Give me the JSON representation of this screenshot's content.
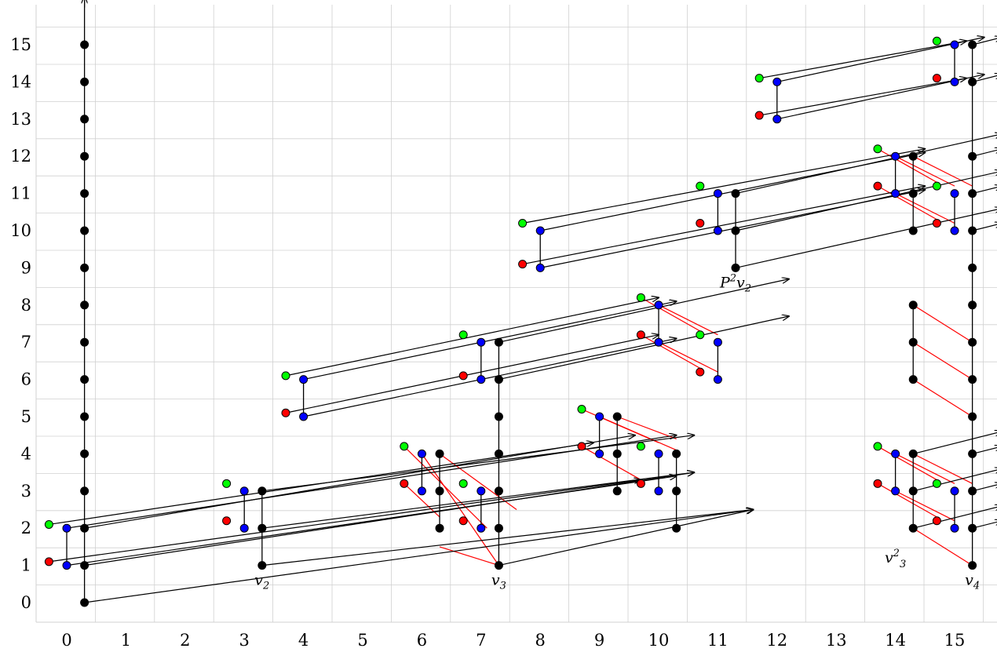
{
  "colors": {
    "background": "#ffffff",
    "grid": "#d0d0d0",
    "black": "#000000",
    "red": "#ff0000",
    "green": "#00ff00",
    "blue": "#0000ff",
    "red_line": "#ff0000"
  },
  "axes": {
    "x_ticks": [
      "0",
      "1",
      "2",
      "3",
      "4",
      "5",
      "6",
      "7",
      "8",
      "9",
      "10",
      "11",
      "12",
      "13",
      "14",
      "15"
    ],
    "y_ticks": [
      "0",
      "1",
      "2",
      "3",
      "4",
      "5",
      "6",
      "7",
      "8",
      "9",
      "10",
      "11",
      "12",
      "13",
      "14",
      "15"
    ],
    "x_range": [
      -0.5,
      15.7
    ],
    "y_range": [
      -0.8,
      16.2
    ],
    "grid": true
  },
  "labels": [
    {
      "text": "v2",
      "base": "v",
      "sub": "2",
      "sup": "",
      "x": 3.3,
      "y": 0.6
    },
    {
      "text": "v3",
      "base": "v",
      "sub": "3",
      "sup": "",
      "x": 7.3,
      "y": 0.6
    },
    {
      "text": "P2v2",
      "base": "P",
      "sup": "2",
      "post": "v",
      "sub": "2",
      "x": 11.3,
      "y": 8.6
    },
    {
      "text": "v3^2",
      "base": "v",
      "sub": "3",
      "sup": "2",
      "x": 14.0,
      "y": 1.2
    },
    {
      "text": "v4",
      "base": "v",
      "sub": "4",
      "sup": "",
      "x": 15.3,
      "y": 0.6
    }
  ],
  "diagram": {
    "black_dots": [
      [
        0.3,
        0
      ],
      [
        0.3,
        1
      ],
      [
        0.3,
        2
      ],
      [
        0.3,
        3
      ],
      [
        0.3,
        4
      ],
      [
        0.3,
        5
      ],
      [
        0.3,
        6
      ],
      [
        0.3,
        7
      ],
      [
        0.3,
        8
      ],
      [
        0.3,
        9
      ],
      [
        0.3,
        10
      ],
      [
        0.3,
        11
      ],
      [
        0.3,
        12
      ],
      [
        0.3,
        13
      ],
      [
        0.3,
        14
      ],
      [
        0.3,
        15
      ],
      [
        3.3,
        1
      ],
      [
        3.3,
        2
      ],
      [
        3.3,
        3
      ],
      [
        6.3,
        2
      ],
      [
        6.3,
        3
      ],
      [
        6.3,
        4
      ],
      [
        7.3,
        1
      ],
      [
        7.3,
        2
      ],
      [
        7.3,
        3
      ],
      [
        7.3,
        4
      ],
      [
        7.3,
        5
      ],
      [
        7.3,
        6
      ],
      [
        7.3,
        7
      ],
      [
        9.3,
        3
      ],
      [
        9.3,
        4
      ],
      [
        9.3,
        5
      ],
      [
        10.3,
        2
      ],
      [
        10.3,
        3
      ],
      [
        10.3,
        4
      ],
      [
        11.3,
        9
      ],
      [
        11.3,
        10
      ],
      [
        11.3,
        11
      ],
      [
        14.3,
        2
      ],
      [
        14.3,
        3
      ],
      [
        14.3,
        4
      ],
      [
        14.3,
        6
      ],
      [
        14.3,
        7
      ],
      [
        14.3,
        8
      ],
      [
        14.3,
        10
      ],
      [
        14.3,
        11
      ],
      [
        14.3,
        12
      ],
      [
        15.3,
        1
      ],
      [
        15.3,
        2
      ],
      [
        15.3,
        3
      ],
      [
        15.3,
        4
      ],
      [
        15.3,
        5
      ],
      [
        15.3,
        6
      ],
      [
        15.3,
        7
      ],
      [
        15.3,
        8
      ],
      [
        15.3,
        9
      ],
      [
        15.3,
        10
      ],
      [
        15.3,
        11
      ],
      [
        15.3,
        12
      ],
      [
        15.3,
        14
      ],
      [
        15.3,
        15
      ]
    ],
    "blue_dots": [
      [
        0,
        1
      ],
      [
        0,
        2
      ],
      [
        3,
        2
      ],
      [
        3,
        3
      ],
      [
        6,
        3
      ],
      [
        6,
        4
      ],
      [
        7,
        2
      ],
      [
        7,
        3
      ],
      [
        9,
        4
      ],
      [
        9,
        5
      ],
      [
        10,
        3
      ],
      [
        10,
        4
      ],
      [
        4,
        5
      ],
      [
        4,
        6
      ],
      [
        7,
        6
      ],
      [
        7,
        7
      ],
      [
        10,
        7
      ],
      [
        10,
        8
      ],
      [
        11,
        6
      ],
      [
        11,
        7
      ],
      [
        8,
        9
      ],
      [
        8,
        10
      ],
      [
        11,
        10
      ],
      [
        11,
        11
      ],
      [
        14,
        11
      ],
      [
        14,
        12
      ],
      [
        15,
        10
      ],
      [
        15,
        11
      ],
      [
        12,
        13
      ],
      [
        12,
        14
      ],
      [
        15,
        14
      ],
      [
        15,
        15
      ],
      [
        14,
        3
      ],
      [
        14,
        4
      ],
      [
        15,
        2
      ],
      [
        15,
        3
      ]
    ],
    "red_dots": [
      [
        -0.3,
        1.1
      ],
      [
        2.7,
        2.2
      ],
      [
        5.7,
        3.2
      ],
      [
        6.7,
        2.2
      ],
      [
        8.7,
        4.2
      ],
      [
        9.7,
        3.2
      ],
      [
        3.7,
        5.1
      ],
      [
        6.7,
        6.1
      ],
      [
        9.7,
        7.2
      ],
      [
        10.7,
        6.2
      ],
      [
        7.7,
        9.1
      ],
      [
        10.7,
        10.2
      ],
      [
        13.7,
        11.2
      ],
      [
        14.7,
        10.2
      ],
      [
        11.7,
        13.1
      ],
      [
        14.7,
        14.1
      ],
      [
        13.7,
        3.2
      ],
      [
        14.7,
        2.2
      ]
    ],
    "green_dots": [
      [
        -0.3,
        2.1
      ],
      [
        2.7,
        3.2
      ],
      [
        5.7,
        4.2
      ],
      [
        6.7,
        3.2
      ],
      [
        8.7,
        5.2
      ],
      [
        9.7,
        4.2
      ],
      [
        3.7,
        6.1
      ],
      [
        6.7,
        7.2
      ],
      [
        9.7,
        8.2
      ],
      [
        10.7,
        7.2
      ],
      [
        7.7,
        10.2
      ],
      [
        10.7,
        11.2
      ],
      [
        13.7,
        12.2
      ],
      [
        14.7,
        11.2
      ],
      [
        11.7,
        14.1
      ],
      [
        14.7,
        15.1
      ],
      [
        13.7,
        4.2
      ],
      [
        14.7,
        3.2
      ]
    ],
    "black_lines": [
      [
        0.3,
        0,
        0.3,
        16.2
      ],
      [
        0,
        1,
        0,
        2
      ],
      [
        3,
        2,
        3,
        3
      ],
      [
        3.3,
        1,
        3.3,
        3
      ],
      [
        6,
        3,
        6,
        4
      ],
      [
        6.3,
        2,
        6.3,
        4
      ],
      [
        7,
        2,
        7,
        3
      ],
      [
        7.3,
        1,
        7.3,
        7
      ],
      [
        9,
        4,
        9,
        5
      ],
      [
        9.3,
        3,
        9.3,
        5
      ],
      [
        10,
        3,
        10,
        4
      ],
      [
        10.3,
        2,
        10.3,
        4
      ],
      [
        4,
        5,
        4,
        6
      ],
      [
        7,
        6,
        7,
        7
      ],
      [
        10,
        7,
        10,
        8
      ],
      [
        11,
        6,
        11,
        7
      ],
      [
        8,
        9,
        8,
        10
      ],
      [
        11,
        10,
        11,
        11
      ],
      [
        11.3,
        9,
        11.3,
        11
      ],
      [
        14,
        11,
        14,
        12
      ],
      [
        14.3,
        10,
        14.3,
        12
      ],
      [
        15,
        10,
        15,
        11
      ],
      [
        12,
        13,
        12,
        14
      ],
      [
        15,
        14,
        15,
        15
      ],
      [
        14,
        3,
        14,
        4
      ],
      [
        14.3,
        2,
        14.3,
        4
      ],
      [
        14.3,
        6,
        14.3,
        8
      ],
      [
        15,
        2,
        15,
        3
      ],
      [
        15.3,
        1,
        15.3,
        15
      ]
    ],
    "arrows": [
      [
        0.3,
        0,
        11.6,
        2.5
      ],
      [
        0.3,
        1,
        10.6,
        3.5
      ],
      [
        0.3,
        2,
        9.6,
        4.5
      ],
      [
        0,
        1,
        10.3,
        3.4
      ],
      [
        0,
        2,
        10.3,
        4.5
      ],
      [
        -0.3,
        1.1,
        9.7,
        3.3
      ],
      [
        -0.3,
        2.1,
        8.9,
        4.3
      ],
      [
        3.3,
        1,
        11.6,
        2.5
      ],
      [
        3.3,
        2,
        10.6,
        3.5
      ],
      [
        3.3,
        3,
        10.6,
        4.5
      ],
      [
        4,
        5,
        10.3,
        7.1
      ],
      [
        4,
        6,
        10.3,
        8.1
      ],
      [
        3.7,
        5.1,
        10,
        7.2
      ],
      [
        3.7,
        6.1,
        10,
        8.2
      ],
      [
        7.3,
        1,
        11.6,
        2.5
      ],
      [
        7.3,
        6,
        12.2,
        7.7
      ],
      [
        7.3,
        7,
        12.2,
        8.7
      ],
      [
        8,
        9,
        14.5,
        11.1
      ],
      [
        8,
        10,
        14.5,
        12.1
      ],
      [
        7.7,
        9.1,
        14.5,
        11.2
      ],
      [
        7.7,
        10.2,
        14.5,
        12.2
      ],
      [
        11.3,
        9,
        15.8,
        10.6
      ],
      [
        11.3,
        10,
        15.8,
        11.6
      ],
      [
        11.3,
        11,
        15.8,
        12.6
      ],
      [
        12,
        13,
        15.5,
        14.2
      ],
      [
        12,
        14,
        15.5,
        15.2
      ],
      [
        11.7,
        13.1,
        15.2,
        14.1
      ],
      [
        11.7,
        14.1,
        15.2,
        15.1
      ],
      [
        14.3,
        2,
        15.8,
        2.6
      ],
      [
        14.3,
        3,
        15.8,
        3.6
      ],
      [
        14.3,
        4,
        15.8,
        4.6
      ],
      [
        15.3,
        2,
        15.8,
        2.2
      ],
      [
        15.3,
        3,
        15.8,
        3.2
      ],
      [
        15.3,
        4,
        15.8,
        4.2
      ],
      [
        15.3,
        10,
        15.8,
        10.2
      ],
      [
        15.3,
        11,
        15.8,
        11.2
      ],
      [
        15.3,
        12,
        15.8,
        12.2
      ],
      [
        15.3,
        14,
        15.8,
        14.2
      ],
      [
        15.3,
        15,
        15.8,
        15.2
      ],
      [
        0.3,
        16.0,
        0.3,
        16.3
      ]
    ],
    "red_lines": [
      [
        5.7,
        3.2,
        6.3,
        2.3
      ],
      [
        6,
        4,
        7.3,
        1
      ],
      [
        5.7,
        4.2,
        7.1,
        2.0
      ],
      [
        6.3,
        4,
        7.6,
        2.5
      ],
      [
        8.7,
        5.2,
        10,
        4.3
      ],
      [
        9,
        5,
        10.3,
        4.1
      ],
      [
        9.3,
        5,
        10.3,
        4.4
      ],
      [
        8.7,
        4.2,
        9.7,
        3.3
      ],
      [
        6.3,
        1.5,
        7.3,
        1
      ],
      [
        9.7,
        8.2,
        10.7,
        7.3
      ],
      [
        10,
        8,
        11,
        7.2
      ],
      [
        9.7,
        7.2,
        10.7,
        6.3
      ],
      [
        10,
        7,
        11,
        6.2
      ],
      [
        13.7,
        12.2,
        14.7,
        11.3
      ],
      [
        14,
        12,
        15,
        11.2
      ],
      [
        13.7,
        11.2,
        14.7,
        10.3
      ],
      [
        14,
        11,
        15,
        10.2
      ],
      [
        14.3,
        12,
        15.3,
        11.2
      ],
      [
        14.3,
        8,
        15.3,
        7
      ],
      [
        14.3,
        7,
        15.3,
        6
      ],
      [
        14.3,
        6,
        15.3,
        5
      ],
      [
        13.7,
        4.2,
        14.7,
        3.3
      ],
      [
        14,
        4,
        15,
        3.2
      ],
      [
        13.7,
        3.2,
        14.7,
        2.3
      ],
      [
        14,
        3,
        15,
        2.2
      ],
      [
        14.3,
        4,
        15.3,
        3.2
      ],
      [
        14.3,
        2,
        15.3,
        1
      ]
    ]
  }
}
